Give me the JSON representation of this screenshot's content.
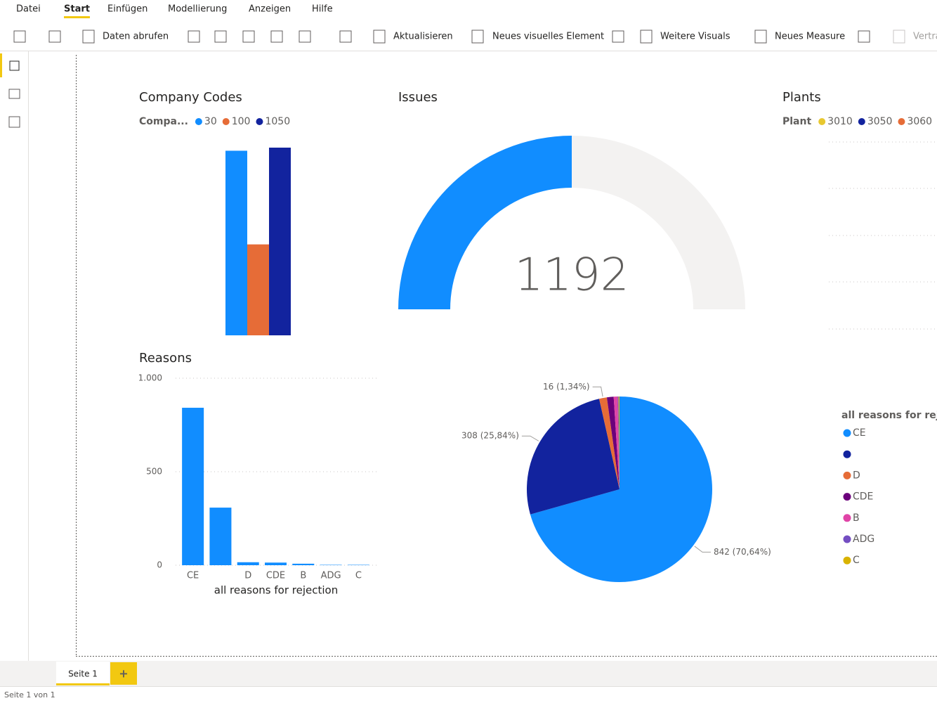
{
  "ribbon": {
    "tabs": [
      "Datei",
      "Start",
      "Einfügen",
      "Modellierung",
      "Anzeigen",
      "Hilfe"
    ],
    "active_tab": 1,
    "buttons": [
      "Daten abrufen",
      "Aktualisieren",
      "Neues visuelles Element",
      "Weitere Visuals",
      "Neues Measure",
      "Vertra"
    ]
  },
  "page_tabs": {
    "tabs": [
      "Seite 1"
    ],
    "add": "+"
  },
  "status": "Seite 1 von 1",
  "chart_data": [
    {
      "type": "bar",
      "title": "Company Codes",
      "legend_title": "Compa...",
      "series": [
        {
          "name": "30",
          "color": "#118dff",
          "values": [
            475
          ]
        },
        {
          "name": "100",
          "color": "#e66c37",
          "values": [
            234
          ]
        },
        {
          "name": "1050",
          "color": "#12239e",
          "values": [
            483
          ]
        }
      ]
    },
    {
      "type": "gauge",
      "title": "Issues",
      "value": 1192,
      "ylim": [
        0,
        2384
      ],
      "color": "#118dff",
      "track_color": "#f3f2f1"
    },
    {
      "type": "bar",
      "title": "Plants",
      "legend_title": "Plant",
      "series": [
        {
          "name": "3010",
          "color": "#e8c830",
          "values": []
        },
        {
          "name": "3050",
          "color": "#12239e",
          "values": []
        },
        {
          "name": "3060",
          "color": "#e66c37",
          "values": []
        }
      ]
    },
    {
      "type": "bar",
      "title": "Reasons",
      "x_label": "all reasons for rejection",
      "categories": [
        "CE",
        null,
        "D",
        "CDE",
        "B",
        "ADG",
        "C"
      ],
      "values": [
        842,
        308,
        16,
        14,
        8,
        2,
        2
      ],
      "color": "#118dff",
      "ylim": [
        0,
        1000
      ],
      "yticks": [
        0,
        500,
        {
          "value": 1000,
          "label": "1.000"
        }
      ],
      "grid": true
    },
    {
      "type": "pie",
      "legend_title": "all reasons for rejection",
      "categories": [
        "CE",
        null,
        "D",
        "CDE",
        "B",
        "ADG",
        "C"
      ],
      "values": [
        842,
        308,
        16,
        14,
        8,
        2,
        2
      ],
      "value_labels": [
        "842 (70,64%)",
        "308 (25,84%)",
        "16 (1,34%)",
        null,
        null,
        null,
        null
      ],
      "colors": [
        "#118dff",
        "#12239e",
        "#e66c37",
        "#6b007b",
        "#e044a7",
        "#744ec2",
        "#d9b300"
      ]
    }
  ]
}
